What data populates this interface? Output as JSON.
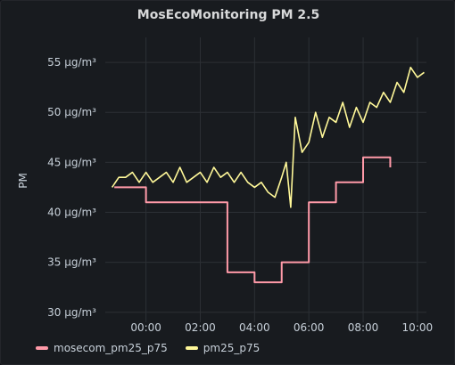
{
  "panel": {
    "title": "MosEcoMonitoring PM 2.5"
  },
  "chart_data": {
    "type": "line",
    "title": "MosEcoMonitoring PM 2.5",
    "ylabel": "PM",
    "y_unit": "µg/m³",
    "ylim": [
      29,
      57.5
    ],
    "xlim": [
      "-01:30",
      "10:20"
    ],
    "y_ticks": [
      {
        "value": 30,
        "label": "30 µg/m³"
      },
      {
        "value": 35,
        "label": "35 µg/m³"
      },
      {
        "value": 40,
        "label": "40 µg/m³"
      },
      {
        "value": 45,
        "label": "45 µg/m³"
      },
      {
        "value": 50,
        "label": "50 µg/m³"
      },
      {
        "value": 55,
        "label": "55 µg/m³"
      }
    ],
    "x_ticks": [
      "00:00",
      "02:00",
      "04:00",
      "06:00",
      "08:00",
      "10:00"
    ],
    "grid": true,
    "legend_position": "bottom-left",
    "series": [
      {
        "name": "mosecom_pm25_p75",
        "color": "#ff9aa8",
        "line_shape": "step-after",
        "x": [
          "-01:10",
          "00:00",
          "02:00",
          "03:00",
          "04:00",
          "05:00",
          "06:00",
          "07:00",
          "08:00",
          "09:00"
        ],
        "values": [
          42.5,
          41,
          41,
          34,
          33,
          35,
          41,
          43,
          45.5,
          44.5
        ],
        "step_end": "09:00"
      },
      {
        "name": "pm25_p75",
        "color": "#fff899",
        "line_shape": "linear",
        "x": [
          "-01:15",
          "-01:00",
          "-00:45",
          "-00:30",
          "-00:15",
          "00:00",
          "00:15",
          "00:30",
          "00:45",
          "01:00",
          "01:15",
          "01:30",
          "01:45",
          "02:00",
          "02:15",
          "02:30",
          "02:45",
          "03:00",
          "03:15",
          "03:30",
          "03:45",
          "04:00",
          "04:15",
          "04:30",
          "04:45",
          "05:00",
          "05:10",
          "05:20",
          "05:30",
          "05:45",
          "06:00",
          "06:15",
          "06:30",
          "06:45",
          "07:00",
          "07:15",
          "07:30",
          "07:45",
          "08:00",
          "08:15",
          "08:30",
          "08:45",
          "09:00",
          "09:15",
          "09:30",
          "09:45",
          "10:00",
          "10:15"
        ],
        "values": [
          42.5,
          43.5,
          43.5,
          44.0,
          43.0,
          44.0,
          43.0,
          43.5,
          44.0,
          43.0,
          44.5,
          43.0,
          43.5,
          44.0,
          43.0,
          44.5,
          43.5,
          44.0,
          43.0,
          44.0,
          43.0,
          42.5,
          43.0,
          42.0,
          41.5,
          43.5,
          45.0,
          40.5,
          49.5,
          46.0,
          47.0,
          50.0,
          47.5,
          49.5,
          49.0,
          51.0,
          48.5,
          50.5,
          49.0,
          51.0,
          50.5,
          52.0,
          51.0,
          53.0,
          52.0,
          54.5,
          53.5,
          54.0
        ]
      }
    ]
  },
  "legend": {
    "items": [
      {
        "label": "mosecom_pm25_p75",
        "color": "#ff9aa8"
      },
      {
        "label": "pm25_p75",
        "color": "#fff899"
      }
    ]
  }
}
